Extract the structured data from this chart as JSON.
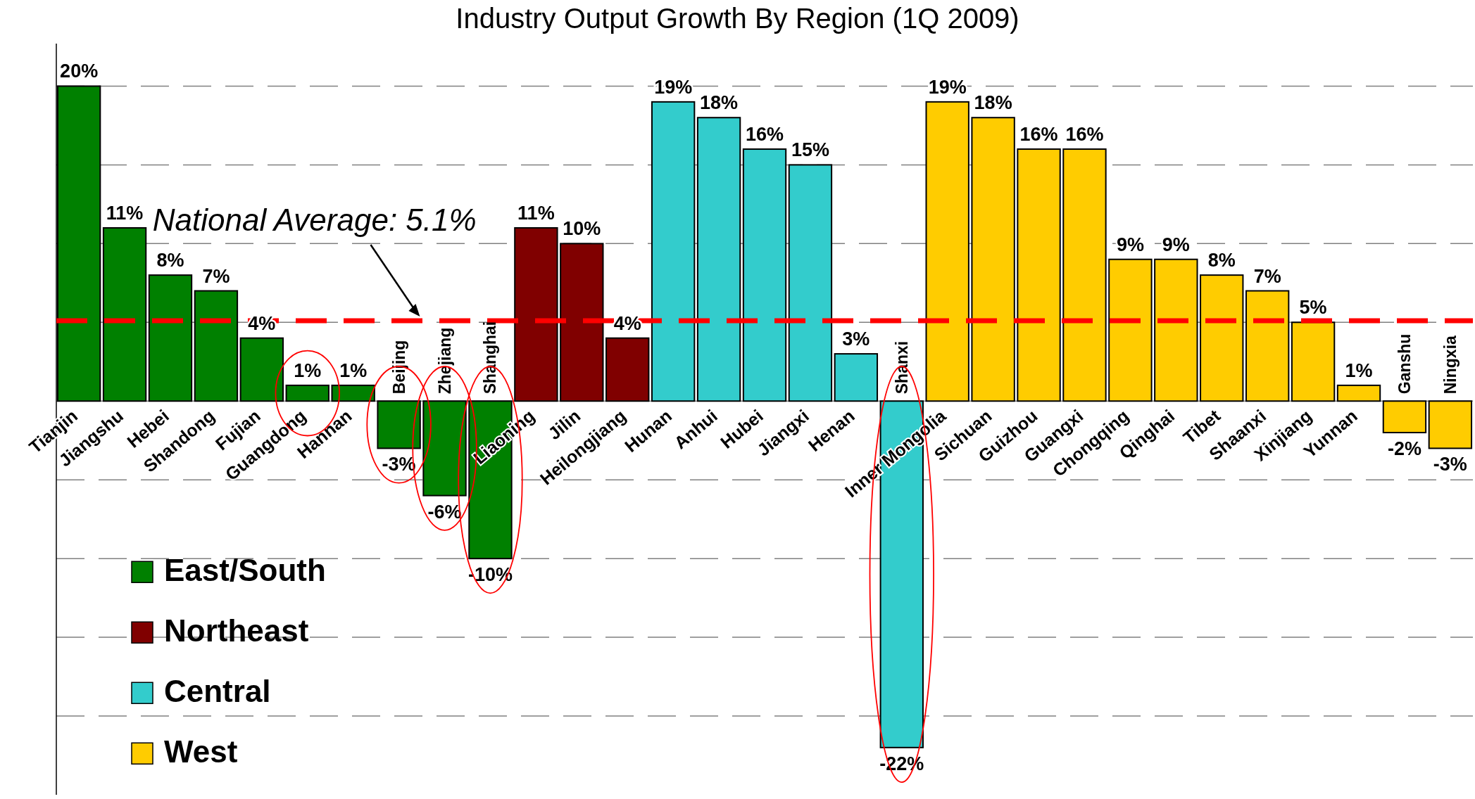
{
  "chart_data": {
    "type": "bar",
    "title": "Industry Output Growth By Region (1Q 2009)",
    "categories": [
      "Tianjin",
      "Jiangshu",
      "Hebei",
      "Shandong",
      "Fujian",
      "Guangdong",
      "Hannan",
      "Beijing",
      "Zhejiang",
      "Shanghai",
      "Liaoning",
      "Jilin",
      "Heilongjiang",
      "Hunan",
      "Anhui",
      "Hubei",
      "Jiangxi",
      "Henan",
      "Shanxi",
      "Inner Mongolia",
      "Sichuan",
      "Guizhou",
      "Guangxi",
      "Chongqing",
      "Qinghai",
      "Tibet",
      "Shaanxi",
      "Xinjiang",
      "Yunnan",
      "Ganshu",
      "Ningxia"
    ],
    "series": [
      {
        "name": "East/South",
        "color": "#008000",
        "values": [
          20,
          11,
          8,
          7,
          4,
          1,
          1,
          -3,
          -6,
          -10,
          null,
          null,
          null,
          null,
          null,
          null,
          null,
          null,
          null,
          null,
          null,
          null,
          null,
          null,
          null,
          null,
          null,
          null,
          null,
          null,
          null
        ],
        "value_labels": [
          "20%",
          "11%",
          "8%",
          "7%",
          "4%",
          "1%",
          "1%",
          "-3%",
          "-6%",
          "-10%",
          null,
          null,
          null,
          null,
          null,
          null,
          null,
          null,
          null,
          null,
          null,
          null,
          null,
          null,
          null,
          null,
          null,
          null,
          null,
          null,
          null
        ]
      },
      {
        "name": "Northeast",
        "color": "#800000",
        "values": [
          null,
          null,
          null,
          null,
          null,
          null,
          null,
          null,
          null,
          null,
          11,
          10,
          4,
          null,
          null,
          null,
          null,
          null,
          null,
          null,
          null,
          null,
          null,
          null,
          null,
          null,
          null,
          null,
          null,
          null,
          null
        ],
        "value_labels": [
          null,
          null,
          null,
          null,
          null,
          null,
          null,
          null,
          null,
          null,
          "11%",
          "10%",
          "4%",
          null,
          null,
          null,
          null,
          null,
          null,
          null,
          null,
          null,
          null,
          null,
          null,
          null,
          null,
          null,
          null,
          null,
          null
        ]
      },
      {
        "name": "Central",
        "color": "#33cccc",
        "values": [
          null,
          null,
          null,
          null,
          null,
          null,
          null,
          null,
          null,
          null,
          null,
          null,
          null,
          19,
          18,
          16,
          15,
          3,
          -22,
          null,
          null,
          null,
          null,
          null,
          null,
          null,
          null,
          null,
          null,
          null,
          null
        ],
        "value_labels": [
          null,
          null,
          null,
          null,
          null,
          null,
          null,
          null,
          null,
          null,
          null,
          null,
          null,
          "19%",
          "18%",
          "16%",
          "15%",
          "3%",
          "-22%",
          null,
          null,
          null,
          null,
          null,
          null,
          null,
          null,
          null,
          null,
          null,
          null
        ]
      },
      {
        "name": "West",
        "color": "#ffcc00",
        "values": [
          null,
          null,
          null,
          null,
          null,
          null,
          null,
          null,
          null,
          null,
          null,
          null,
          null,
          null,
          null,
          null,
          null,
          null,
          null,
          19,
          18,
          16,
          16,
          9,
          9,
          8,
          7,
          5,
          1,
          -2,
          -3
        ],
        "value_labels": [
          null,
          null,
          null,
          null,
          null,
          null,
          null,
          null,
          null,
          null,
          null,
          null,
          null,
          null,
          null,
          null,
          null,
          null,
          null,
          "19%",
          "18%",
          "16%",
          "16%",
          "9%",
          "9%",
          "8%",
          "7%",
          "5%",
          "1%",
          "-2%",
          "-3%"
        ]
      }
    ],
    "ylim": [
      -25,
      22.7
    ],
    "yticks": [
      {
        "value": -20,
        "label": null
      },
      {
        "value": -15,
        "label": null
      },
      {
        "value": -10,
        "label": null
      },
      {
        "value": -5,
        "label": null
      },
      {
        "value": 0,
        "label": null
      },
      {
        "value": 5,
        "label": null
      },
      {
        "value": 10,
        "label": null
      },
      {
        "value": 15,
        "label": null
      },
      {
        "value": 20,
        "label": null
      }
    ],
    "grid": "y",
    "tick_labels": "x",
    "legend": "bottom left",
    "ref_lines": [
      {
        "axis": "y",
        "value": 5.1,
        "label": "National Average: 5.1%",
        "color": "#ff0000",
        "line_style": "dashed"
      }
    ]
  }
}
